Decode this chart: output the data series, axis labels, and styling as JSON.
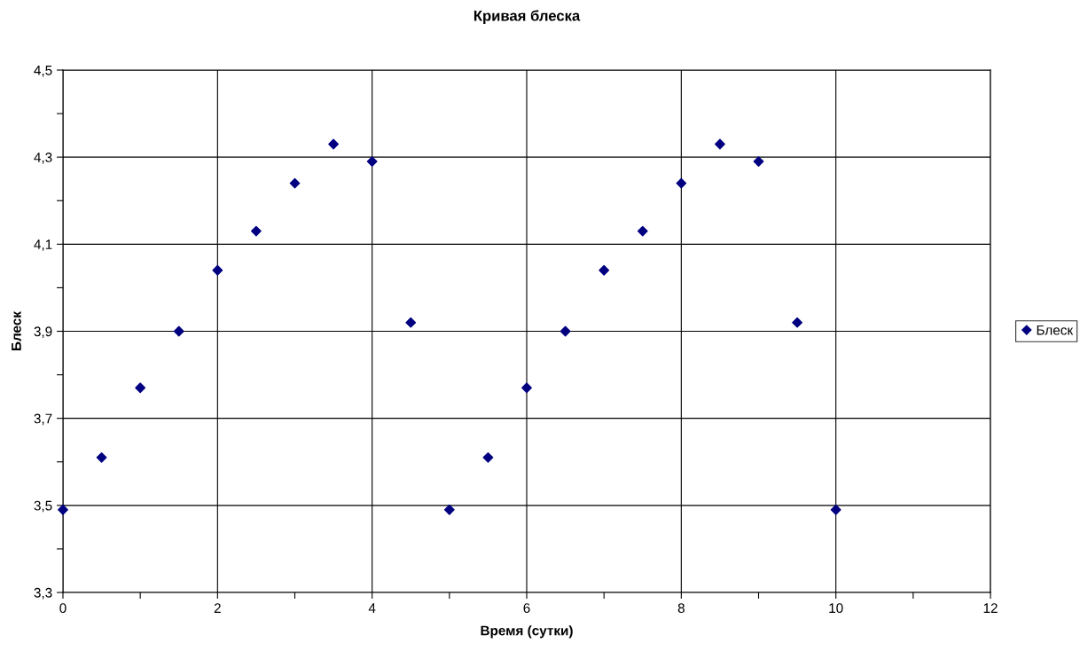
{
  "chart_data": {
    "type": "scatter",
    "title": "Кривая блеска",
    "xlabel": "Время (сутки)",
    "ylabel": "Блеск",
    "x": [
      0,
      0.5,
      1,
      1.5,
      2,
      2.5,
      3,
      3.5,
      4,
      4.5,
      5,
      5.5,
      6,
      6.5,
      7,
      7.5,
      8,
      8.5,
      9,
      9.5,
      10
    ],
    "series": [
      {
        "name": "Блеск",
        "color": "#000080",
        "values": [
          3.49,
          3.61,
          3.77,
          3.9,
          4.04,
          4.13,
          4.24,
          4.33,
          4.29,
          3.92,
          3.49,
          3.61,
          3.77,
          3.9,
          4.04,
          4.13,
          4.24,
          4.33,
          4.29,
          3.92,
          3.49
        ]
      }
    ],
    "xlim": [
      0,
      12
    ],
    "xticks": [
      0,
      {
        "value": 1,
        "label": null
      },
      2,
      {
        "value": 3,
        "label": null
      },
      4,
      {
        "value": 5,
        "label": null
      },
      6,
      {
        "value": 7,
        "label": null
      },
      8,
      {
        "value": 9,
        "label": null
      },
      10,
      {
        "value": 11,
        "label": null
      },
      12
    ],
    "ylim": [
      3.3,
      4.5
    ],
    "yticks": [
      {
        "value": 3.3,
        "label": "3,3"
      },
      {
        "value": 3.4,
        "label": null
      },
      {
        "value": 3.5,
        "label": "3,5"
      },
      {
        "value": 3.6,
        "label": null
      },
      {
        "value": 3.7,
        "label": "3,7"
      },
      {
        "value": 3.8,
        "label": null
      },
      {
        "value": 3.9,
        "label": "3,9"
      },
      {
        "value": 4.0,
        "label": null
      },
      {
        "value": 4.1,
        "label": "4,1"
      },
      {
        "value": 4.2,
        "label": null
      },
      {
        "value": 4.3,
        "label": "4,3"
      },
      {
        "value": 4.4,
        "label": null
      },
      {
        "value": 4.5,
        "label": "4,5"
      }
    ],
    "grid": true,
    "legend": "right",
    "marker": "diamond"
  }
}
